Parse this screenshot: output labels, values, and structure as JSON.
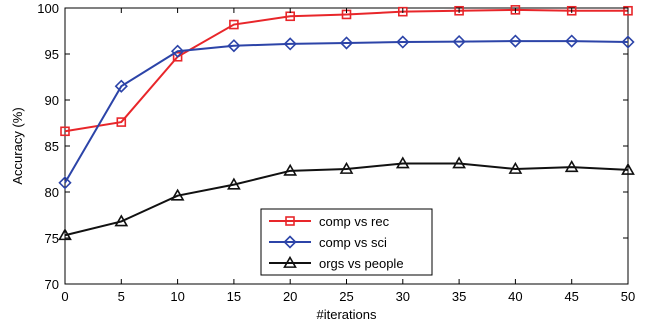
{
  "chart_data": {
    "type": "line",
    "title": "",
    "xlabel": "#iterations",
    "ylabel": "Accuracy (%)",
    "xlim": [
      0,
      50
    ],
    "ylim": [
      70,
      100
    ],
    "x_ticks": [
      "0",
      "5",
      "10",
      "15",
      "20",
      "25",
      "30",
      "35",
      "40",
      "45",
      "50"
    ],
    "y_ticks": [
      "70",
      "75",
      "80",
      "85",
      "90",
      "95",
      "100"
    ],
    "grid": false,
    "legend_position": "lower-center",
    "x": [
      0,
      5,
      10,
      15,
      20,
      25,
      30,
      35,
      40,
      45,
      50
    ],
    "series": [
      {
        "name": "comp vs rec",
        "color": "#e8262a",
        "marker": "square",
        "values": [
          86.6,
          87.6,
          94.7,
          98.2,
          99.1,
          99.3,
          99.6,
          99.7,
          99.8,
          99.7,
          99.7
        ]
      },
      {
        "name": "comp vs sci",
        "color": "#2c44a8",
        "marker": "diamond",
        "values": [
          81.0,
          91.5,
          95.3,
          95.9,
          96.1,
          96.2,
          96.3,
          96.35,
          96.4,
          96.4,
          96.3
        ]
      },
      {
        "name": "orgs vs people",
        "color": "#111111",
        "marker": "triangle",
        "values": [
          75.3,
          76.8,
          79.6,
          80.8,
          82.3,
          82.5,
          83.1,
          83.1,
          82.5,
          82.7,
          82.4
        ]
      }
    ]
  }
}
